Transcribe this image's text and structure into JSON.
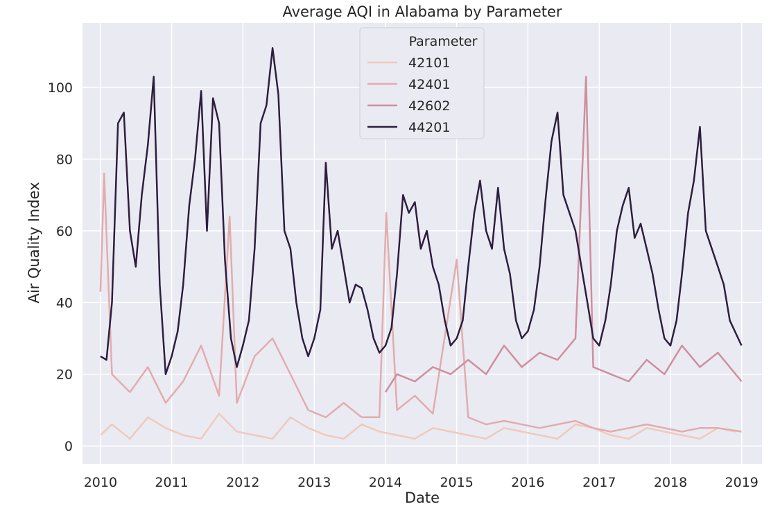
{
  "chart_data": {
    "type": "line",
    "title": "Average AQI in Alabama by Parameter",
    "xlabel": "Date",
    "ylabel": "Air Quality Index",
    "x_range": [
      "2009-10-01",
      "2019-04-15"
    ],
    "ylim": [
      -5,
      118
    ],
    "x_ticks": [
      "2010",
      "2011",
      "2012",
      "2013",
      "2014",
      "2015",
      "2016",
      "2017",
      "2018",
      "2019"
    ],
    "y_ticks": [
      "0",
      "20",
      "40",
      "60",
      "80",
      "100"
    ],
    "y_tick_values": [
      0,
      20,
      40,
      60,
      80,
      100
    ],
    "grid": true,
    "background": "#EAEAF2",
    "legend": {
      "title": "Parameter",
      "placement": "top-center"
    },
    "series": [
      {
        "name": "42101",
        "color": "#EFCABC",
        "points": [
          [
            "2010-01-01",
            3
          ],
          [
            "2010-03-01",
            6
          ],
          [
            "2010-06-01",
            2
          ],
          [
            "2010-09-01",
            8
          ],
          [
            "2010-12-01",
            5
          ],
          [
            "2011-03-01",
            3
          ],
          [
            "2011-06-01",
            2
          ],
          [
            "2011-09-01",
            9
          ],
          [
            "2011-12-01",
            4
          ],
          [
            "2012-03-01",
            3
          ],
          [
            "2012-06-01",
            2
          ],
          [
            "2012-09-01",
            8
          ],
          [
            "2012-12-01",
            5
          ],
          [
            "2013-03-01",
            3
          ],
          [
            "2013-06-01",
            2
          ],
          [
            "2013-09-01",
            6
          ],
          [
            "2013-12-01",
            4
          ],
          [
            "2014-03-01",
            3
          ],
          [
            "2014-06-01",
            2
          ],
          [
            "2014-09-01",
            5
          ],
          [
            "2014-12-01",
            4
          ],
          [
            "2015-03-01",
            3
          ],
          [
            "2015-06-01",
            2
          ],
          [
            "2015-09-01",
            5
          ],
          [
            "2015-12-01",
            4
          ],
          [
            "2016-03-01",
            3
          ],
          [
            "2016-06-01",
            2
          ],
          [
            "2016-09-01",
            6
          ],
          [
            "2016-12-01",
            5
          ],
          [
            "2017-03-01",
            3
          ],
          [
            "2017-06-01",
            2
          ],
          [
            "2017-09-01",
            5
          ],
          [
            "2017-12-01",
            4
          ],
          [
            "2018-03-01",
            3
          ],
          [
            "2018-06-01",
            2
          ],
          [
            "2018-09-01",
            5
          ],
          [
            "2018-12-01",
            4
          ]
        ]
      },
      {
        "name": "42401",
        "color": "#E2ACAE",
        "points": [
          [
            "2010-01-01",
            43
          ],
          [
            "2010-01-20",
            76
          ],
          [
            "2010-03-01",
            20
          ],
          [
            "2010-06-01",
            15
          ],
          [
            "2010-09-01",
            22
          ],
          [
            "2010-12-01",
            12
          ],
          [
            "2011-03-01",
            18
          ],
          [
            "2011-06-01",
            28
          ],
          [
            "2011-09-01",
            14
          ],
          [
            "2011-10-25",
            64
          ],
          [
            "2011-12-01",
            12
          ],
          [
            "2012-03-01",
            25
          ],
          [
            "2012-06-01",
            30
          ],
          [
            "2012-09-01",
            20
          ],
          [
            "2012-12-01",
            10
          ],
          [
            "2013-03-01",
            8
          ],
          [
            "2013-06-01",
            12
          ],
          [
            "2013-09-01",
            8
          ],
          [
            "2013-12-01",
            8
          ],
          [
            "2014-01-05",
            65
          ],
          [
            "2014-03-01",
            10
          ],
          [
            "2014-06-01",
            14
          ],
          [
            "2014-09-01",
            9
          ],
          [
            "2015-01-01",
            52
          ],
          [
            "2015-03-01",
            8
          ],
          [
            "2015-06-01",
            6
          ],
          [
            "2015-09-01",
            7
          ],
          [
            "2015-12-01",
            6
          ],
          [
            "2016-03-01",
            5
          ],
          [
            "2016-06-01",
            6
          ],
          [
            "2016-09-01",
            7
          ],
          [
            "2016-12-01",
            5
          ],
          [
            "2017-03-01",
            4
          ],
          [
            "2017-06-01",
            5
          ],
          [
            "2017-09-01",
            6
          ],
          [
            "2017-12-01",
            5
          ],
          [
            "2018-03-01",
            4
          ],
          [
            "2018-06-01",
            5
          ],
          [
            "2018-09-01",
            5
          ],
          [
            "2018-12-31",
            4
          ]
        ]
      },
      {
        "name": "42602",
        "color": "#CF8E9E",
        "points": [
          [
            "2014-01-01",
            15
          ],
          [
            "2014-03-01",
            20
          ],
          [
            "2014-06-01",
            18
          ],
          [
            "2014-09-01",
            22
          ],
          [
            "2014-12-01",
            20
          ],
          [
            "2015-03-01",
            24
          ],
          [
            "2015-06-01",
            20
          ],
          [
            "2015-09-01",
            28
          ],
          [
            "2015-12-01",
            22
          ],
          [
            "2016-03-01",
            26
          ],
          [
            "2016-06-01",
            24
          ],
          [
            "2016-09-01",
            30
          ],
          [
            "2016-10-25",
            103
          ],
          [
            "2016-12-01",
            22
          ],
          [
            "2017-03-01",
            20
          ],
          [
            "2017-06-01",
            18
          ],
          [
            "2017-09-01",
            24
          ],
          [
            "2017-12-01",
            20
          ],
          [
            "2018-03-01",
            28
          ],
          [
            "2018-06-01",
            22
          ],
          [
            "2018-09-01",
            26
          ],
          [
            "2018-12-31",
            18
          ]
        ]
      },
      {
        "name": "44201",
        "color": "#2D1E3E",
        "points": [
          [
            "2010-01-01",
            25
          ],
          [
            "2010-02-01",
            24
          ],
          [
            "2010-03-01",
            40
          ],
          [
            "2010-04-01",
            90
          ],
          [
            "2010-05-01",
            93
          ],
          [
            "2010-06-01",
            60
          ],
          [
            "2010-07-01",
            50
          ],
          [
            "2010-08-01",
            70
          ],
          [
            "2010-09-01",
            84
          ],
          [
            "2010-10-01",
            103
          ],
          [
            "2010-11-01",
            45
          ],
          [
            "2010-12-01",
            20
          ],
          [
            "2011-01-01",
            25
          ],
          [
            "2011-02-01",
            32
          ],
          [
            "2011-03-01",
            45
          ],
          [
            "2011-04-01",
            67
          ],
          [
            "2011-05-01",
            80
          ],
          [
            "2011-06-01",
            99
          ],
          [
            "2011-07-01",
            60
          ],
          [
            "2011-08-01",
            97
          ],
          [
            "2011-09-01",
            90
          ],
          [
            "2011-10-01",
            52
          ],
          [
            "2011-11-01",
            30
          ],
          [
            "2011-12-01",
            22
          ],
          [
            "2012-01-01",
            28
          ],
          [
            "2012-02-01",
            35
          ],
          [
            "2012-03-01",
            55
          ],
          [
            "2012-04-01",
            90
          ],
          [
            "2012-05-01",
            95
          ],
          [
            "2012-06-01",
            111
          ],
          [
            "2012-07-01",
            98
          ],
          [
            "2012-08-01",
            60
          ],
          [
            "2012-09-01",
            55
          ],
          [
            "2012-10-01",
            40
          ],
          [
            "2012-11-01",
            30
          ],
          [
            "2012-12-01",
            25
          ],
          [
            "2013-01-01",
            30
          ],
          [
            "2013-02-01",
            38
          ],
          [
            "2013-03-01",
            79
          ],
          [
            "2013-04-01",
            55
          ],
          [
            "2013-05-01",
            60
          ],
          [
            "2013-06-01",
            50
          ],
          [
            "2013-07-01",
            40
          ],
          [
            "2013-08-01",
            45
          ],
          [
            "2013-09-01",
            44
          ],
          [
            "2013-10-01",
            38
          ],
          [
            "2013-11-01",
            30
          ],
          [
            "2013-12-01",
            26
          ],
          [
            "2014-01-01",
            28
          ],
          [
            "2014-02-01",
            33
          ],
          [
            "2014-03-01",
            48
          ],
          [
            "2014-04-01",
            70
          ],
          [
            "2014-05-01",
            65
          ],
          [
            "2014-06-01",
            68
          ],
          [
            "2014-07-01",
            55
          ],
          [
            "2014-08-01",
            60
          ],
          [
            "2014-09-01",
            50
          ],
          [
            "2014-10-01",
            45
          ],
          [
            "2014-11-01",
            35
          ],
          [
            "2014-12-01",
            28
          ],
          [
            "2015-01-01",
            30
          ],
          [
            "2015-02-01",
            35
          ],
          [
            "2015-03-01",
            50
          ],
          [
            "2015-04-01",
            65
          ],
          [
            "2015-05-01",
            74
          ],
          [
            "2015-06-01",
            60
          ],
          [
            "2015-07-01",
            55
          ],
          [
            "2015-08-01",
            72
          ],
          [
            "2015-09-01",
            55
          ],
          [
            "2015-10-01",
            48
          ],
          [
            "2015-11-01",
            35
          ],
          [
            "2015-12-01",
            30
          ],
          [
            "2016-01-01",
            32
          ],
          [
            "2016-02-01",
            38
          ],
          [
            "2016-03-01",
            50
          ],
          [
            "2016-04-01",
            69
          ],
          [
            "2016-05-01",
            85
          ],
          [
            "2016-06-01",
            93
          ],
          [
            "2016-07-01",
            70
          ],
          [
            "2016-08-01",
            65
          ],
          [
            "2016-09-01",
            60
          ],
          [
            "2016-10-01",
            50
          ],
          [
            "2016-11-01",
            40
          ],
          [
            "2016-12-01",
            30
          ],
          [
            "2017-01-01",
            28
          ],
          [
            "2017-02-01",
            35
          ],
          [
            "2017-03-01",
            45
          ],
          [
            "2017-04-01",
            60
          ],
          [
            "2017-05-01",
            67
          ],
          [
            "2017-06-01",
            72
          ],
          [
            "2017-07-01",
            58
          ],
          [
            "2017-08-01",
            62
          ],
          [
            "2017-09-01",
            55
          ],
          [
            "2017-10-01",
            48
          ],
          [
            "2017-11-01",
            38
          ],
          [
            "2017-12-01",
            30
          ],
          [
            "2018-01-01",
            28
          ],
          [
            "2018-02-01",
            35
          ],
          [
            "2018-03-01",
            48
          ],
          [
            "2018-04-01",
            65
          ],
          [
            "2018-05-01",
            74
          ],
          [
            "2018-06-01",
            89
          ],
          [
            "2018-07-01",
            60
          ],
          [
            "2018-08-01",
            55
          ],
          [
            "2018-09-01",
            50
          ],
          [
            "2018-10-01",
            45
          ],
          [
            "2018-11-01",
            35
          ],
          [
            "2018-12-31",
            28
          ]
        ]
      }
    ]
  }
}
